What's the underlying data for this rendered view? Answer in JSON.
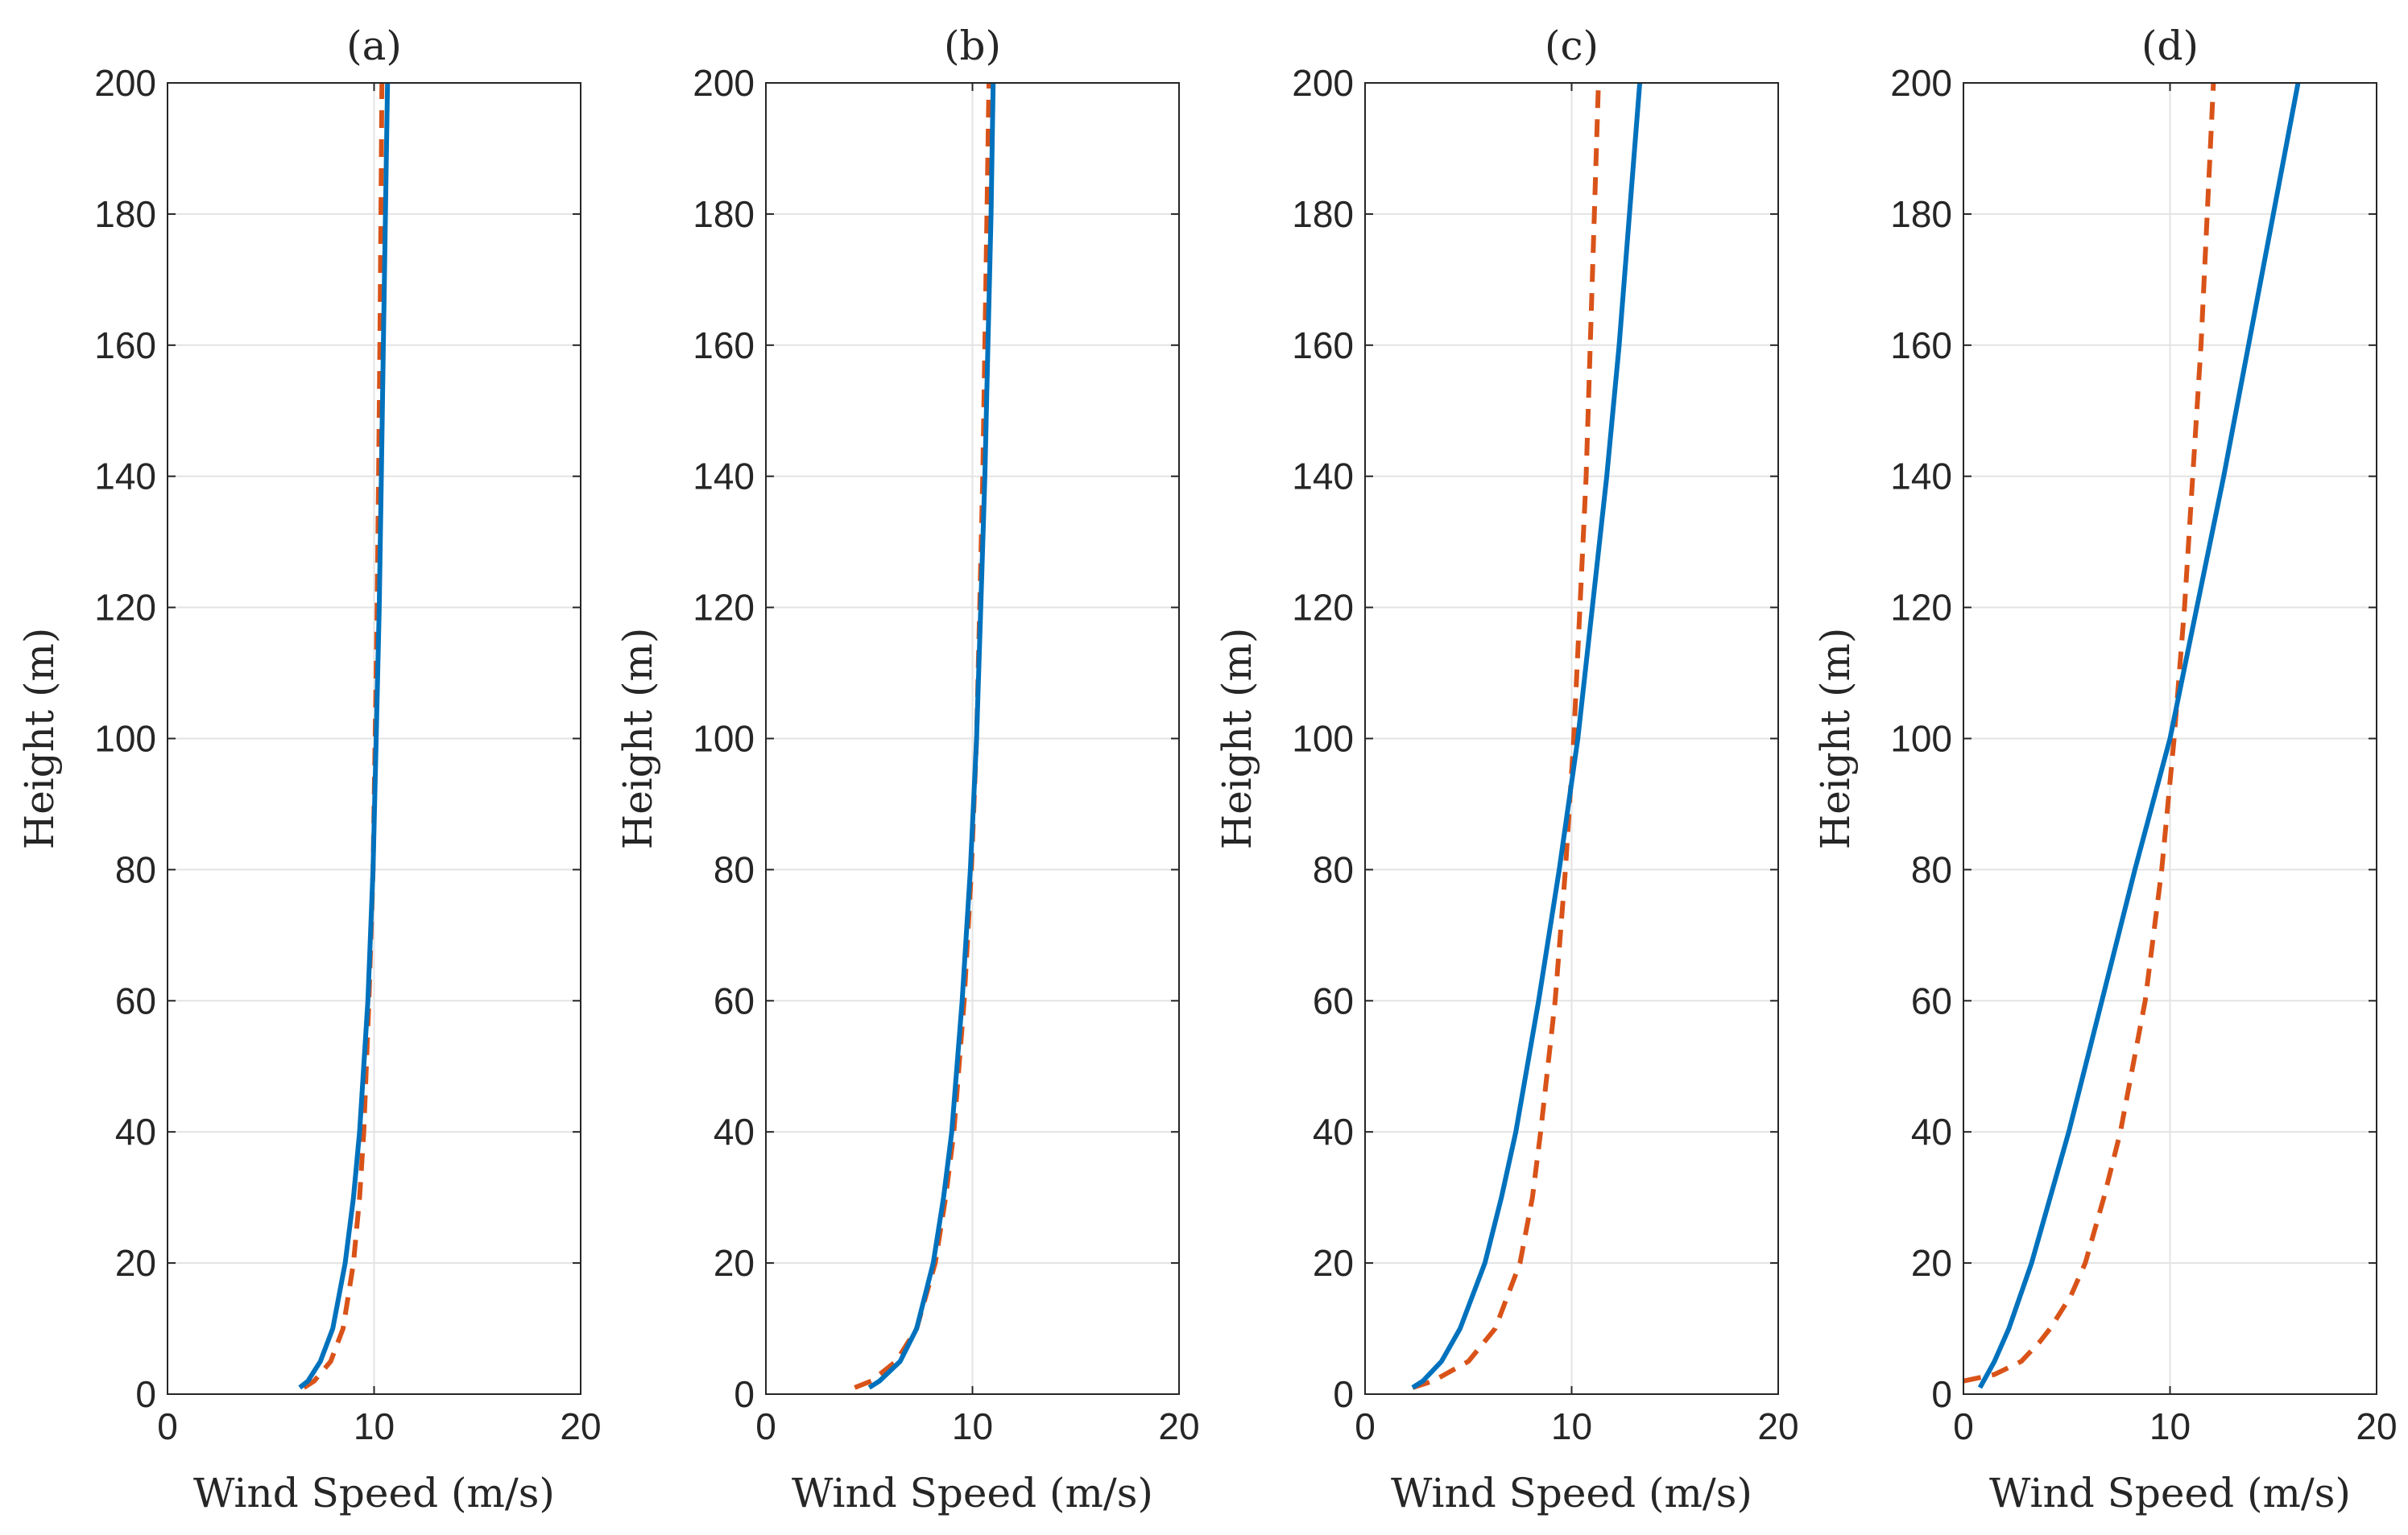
{
  "chart_data": [
    {
      "type": "line",
      "title": "(a)",
      "xlabel": "Wind Speed (m/s)",
      "ylabel": "Height (m)",
      "xlim": [
        0,
        20
      ],
      "ylim": [
        0,
        200
      ],
      "xticks": [
        "0",
        "10",
        "20"
      ],
      "yticks": [
        "0",
        "20",
        "40",
        "60",
        "80",
        "100",
        "120",
        "140",
        "160",
        "180",
        "200"
      ],
      "grid": true,
      "series": [
        {
          "name": "solid",
          "color": "#0072BD",
          "style": "solid",
          "y": [
            1,
            2,
            5,
            10,
            20,
            30,
            40,
            60,
            80,
            100,
            120,
            140,
            160,
            180,
            200
          ],
          "x": [
            6.4,
            6.8,
            7.4,
            8.0,
            8.6,
            9.0,
            9.3,
            9.7,
            9.95,
            10.1,
            10.25,
            10.35,
            10.45,
            10.55,
            10.65
          ]
        },
        {
          "name": "dashed",
          "color": "#D95319",
          "style": "dashed",
          "y": [
            1,
            2,
            5,
            10,
            20,
            30,
            40,
            60,
            80,
            100,
            120,
            140,
            160,
            180,
            200
          ],
          "x": [
            6.6,
            7.1,
            7.9,
            8.5,
            9.0,
            9.3,
            9.5,
            9.75,
            9.95,
            10.05,
            10.15,
            10.22,
            10.28,
            10.33,
            10.38
          ]
        }
      ]
    },
    {
      "type": "line",
      "title": "(b)",
      "xlabel": "Wind Speed (m/s)",
      "ylabel": "Height (m)",
      "xlim": [
        0,
        20
      ],
      "ylim": [
        0,
        200
      ],
      "xticks": [
        "0",
        "10",
        "20"
      ],
      "yticks": [
        "0",
        "20",
        "40",
        "60",
        "80",
        "100",
        "120",
        "140",
        "160",
        "180",
        "200"
      ],
      "grid": true,
      "series": [
        {
          "name": "solid",
          "color": "#0072BD",
          "style": "solid",
          "y": [
            1,
            2,
            5,
            10,
            20,
            30,
            40,
            60,
            80,
            100,
            120,
            140,
            160,
            180,
            200
          ],
          "x": [
            5.0,
            5.5,
            6.5,
            7.3,
            8.1,
            8.6,
            9.0,
            9.5,
            9.9,
            10.2,
            10.4,
            10.6,
            10.75,
            10.9,
            11.0
          ]
        },
        {
          "name": "dashed",
          "color": "#D95319",
          "style": "dashed",
          "y": [
            1,
            2,
            5,
            10,
            20,
            30,
            40,
            60,
            80,
            100,
            120,
            140,
            160,
            180,
            200
          ],
          "x": [
            4.3,
            5.1,
            6.3,
            7.3,
            8.2,
            8.7,
            9.1,
            9.6,
            9.95,
            10.2,
            10.35,
            10.5,
            10.6,
            10.7,
            10.8
          ]
        }
      ]
    },
    {
      "type": "line",
      "title": "(c)",
      "xlabel": "Wind Speed (m/s)",
      "ylabel": "Height (m)",
      "xlim": [
        0,
        20
      ],
      "ylim": [
        0,
        200
      ],
      "xticks": [
        "0",
        "10",
        "20"
      ],
      "yticks": [
        "0",
        "20",
        "40",
        "60",
        "80",
        "100",
        "120",
        "140",
        "160",
        "180",
        "200"
      ],
      "grid": true,
      "series": [
        {
          "name": "solid",
          "color": "#0072BD",
          "style": "solid",
          "y": [
            1,
            2,
            5,
            10,
            20,
            30,
            40,
            60,
            80,
            100,
            120,
            140,
            160,
            180,
            200
          ],
          "x": [
            2.3,
            2.8,
            3.7,
            4.6,
            5.8,
            6.6,
            7.3,
            8.4,
            9.4,
            10.3,
            11.0,
            11.7,
            12.3,
            12.8,
            13.3
          ]
        },
        {
          "name": "dashed",
          "color": "#D95319",
          "style": "dashed",
          "y": [
            1,
            2,
            5,
            10,
            20,
            30,
            40,
            60,
            80,
            100,
            120,
            140,
            160,
            180,
            200
          ],
          "x": [
            2.3,
            3.3,
            5.0,
            6.3,
            7.5,
            8.1,
            8.5,
            9.2,
            9.7,
            10.1,
            10.4,
            10.7,
            10.9,
            11.1,
            11.3
          ]
        }
      ]
    },
    {
      "type": "line",
      "title": "(d)",
      "xlabel": "Wind Speed (m/s)",
      "ylabel": "Height (m)",
      "xlim": [
        0,
        20
      ],
      "ylim": [
        0,
        200
      ],
      "xticks": [
        "0",
        "10",
        "20"
      ],
      "yticks": [
        "0",
        "20",
        "40",
        "60",
        "80",
        "100",
        "120",
        "140",
        "160",
        "180",
        "200"
      ],
      "grid": true,
      "series": [
        {
          "name": "solid",
          "color": "#0072BD",
          "style": "solid",
          "y": [
            1,
            5,
            10,
            20,
            30,
            40,
            60,
            80,
            100,
            120,
            140,
            160,
            180,
            200
          ],
          "x": [
            0.8,
            1.5,
            2.2,
            3.3,
            4.2,
            5.1,
            6.7,
            8.3,
            10.0,
            11.3,
            12.6,
            13.8,
            15.0,
            16.2
          ]
        },
        {
          "name": "dashed",
          "color": "#D95319",
          "style": "dashed",
          "y": [
            2,
            3,
            5,
            8,
            10,
            15,
            20,
            30,
            40,
            60,
            80,
            100,
            120,
            140,
            160,
            180,
            200
          ],
          "x": [
            0.0,
            1.5,
            2.8,
            3.7,
            4.2,
            5.2,
            5.9,
            6.8,
            7.6,
            8.8,
            9.6,
            10.2,
            10.7,
            11.1,
            11.5,
            11.8,
            12.1
          ]
        }
      ]
    }
  ]
}
